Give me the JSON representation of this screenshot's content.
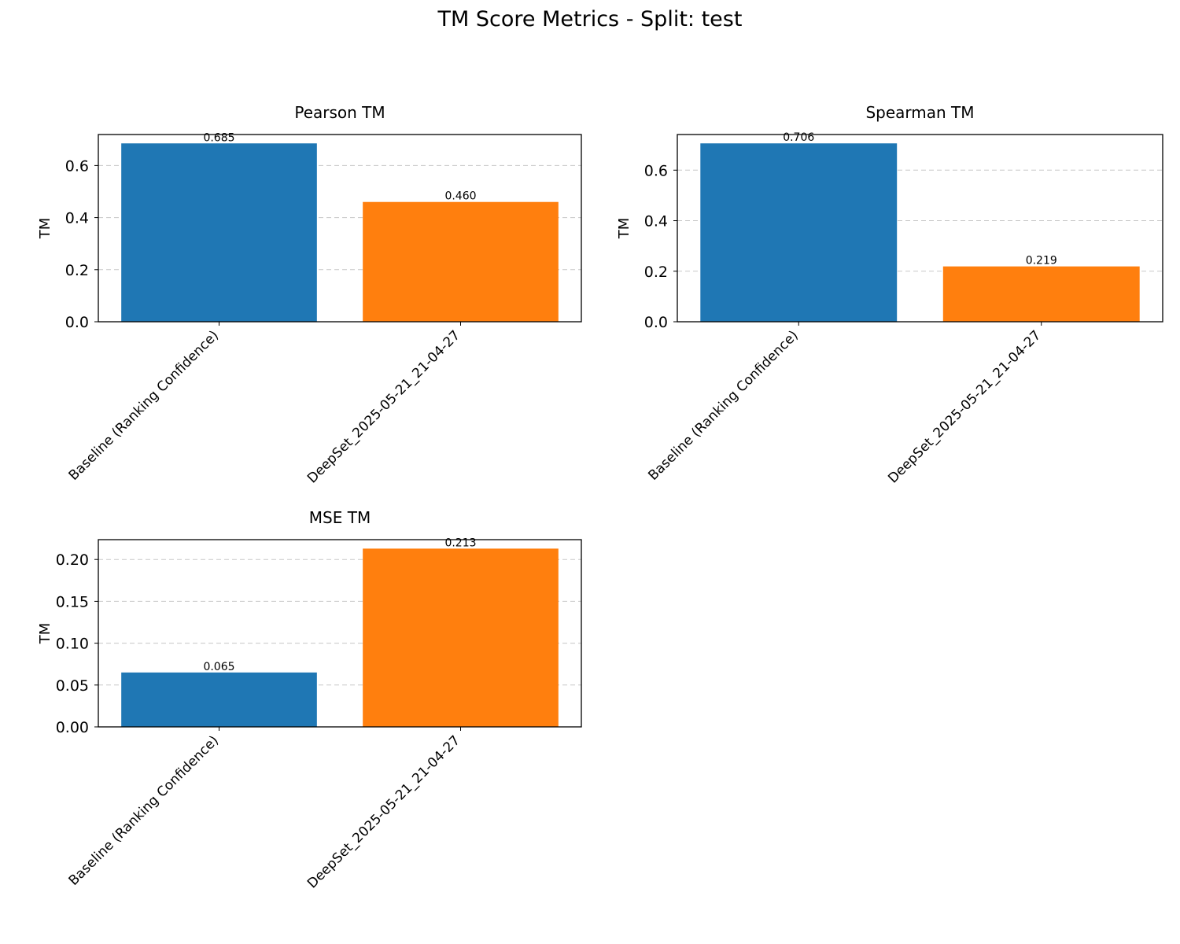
{
  "figure": {
    "title": "TM Score Metrics - Split: test"
  },
  "colors": {
    "baseline": "#1f77b4",
    "deepset": "#ff7f0e",
    "grid": "#b0b0b0"
  },
  "chart_data": [
    {
      "type": "bar",
      "title": "Pearson TM",
      "ylabel": "TM",
      "xlabel": "",
      "categories": [
        "Baseline (Ranking Confidence)",
        "DeepSet_2025-05-21_21-04-27"
      ],
      "values": [
        0.685,
        0.46
      ],
      "value_labels": [
        "0.685",
        "0.460"
      ],
      "ylim": [
        0,
        0.719
      ],
      "yticks": [
        0.0,
        0.2,
        0.4,
        0.6
      ],
      "ytick_labels": [
        "0.0",
        "0.2",
        "0.4",
        "0.6"
      ],
      "grid": "y-dashed",
      "legend": "none"
    },
    {
      "type": "bar",
      "title": "Spearman TM",
      "ylabel": "TM",
      "xlabel": "",
      "categories": [
        "Baseline (Ranking Confidence)",
        "DeepSet_2025-05-21_21-04-27"
      ],
      "values": [
        0.706,
        0.219
      ],
      "value_labels": [
        "0.706",
        "0.219"
      ],
      "ylim": [
        0,
        0.741
      ],
      "yticks": [
        0.0,
        0.2,
        0.4,
        0.6
      ],
      "ytick_labels": [
        "0.0",
        "0.2",
        "0.4",
        "0.6"
      ],
      "grid": "y-dashed",
      "legend": "none"
    },
    {
      "type": "bar",
      "title": "MSE TM",
      "ylabel": "TM",
      "xlabel": "",
      "categories": [
        "Baseline (Ranking Confidence)",
        "DeepSet_2025-05-21_21-04-27"
      ],
      "values": [
        0.065,
        0.213
      ],
      "value_labels": [
        "0.065",
        "0.213"
      ],
      "ylim": [
        0,
        0.2237
      ],
      "yticks": [
        0.0,
        0.05,
        0.1,
        0.15,
        0.2
      ],
      "ytick_labels": [
        "0.00",
        "0.05",
        "0.10",
        "0.15",
        "0.20"
      ],
      "grid": "y-dashed",
      "legend": "none"
    }
  ]
}
